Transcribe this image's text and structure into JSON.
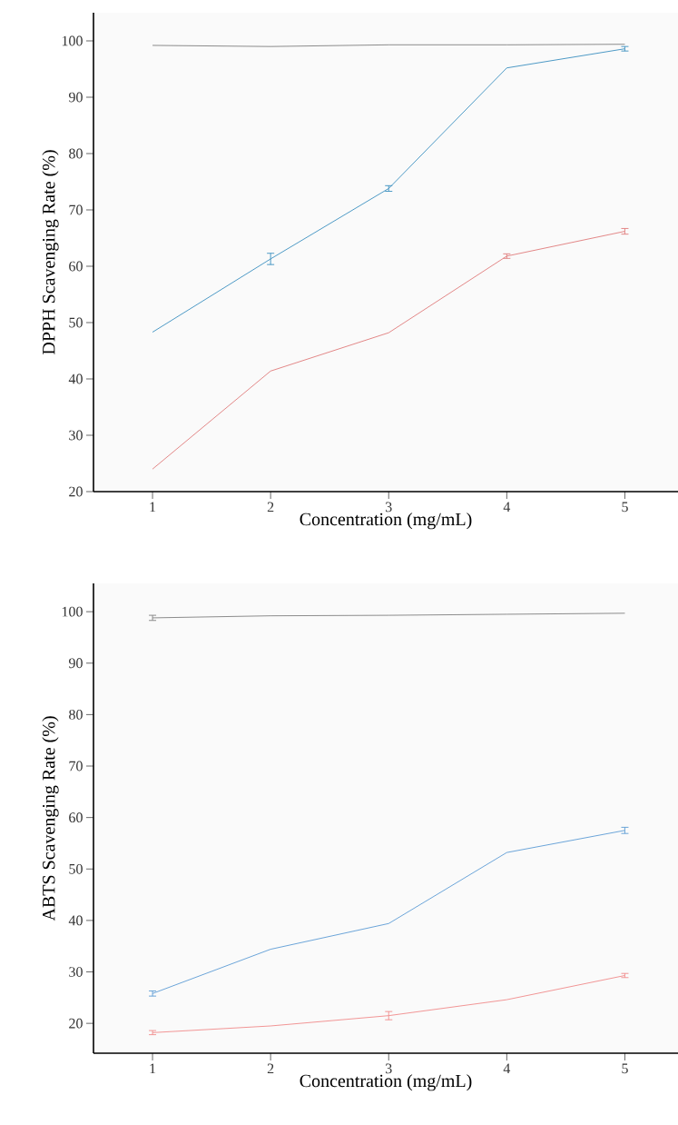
{
  "chart_data": [
    {
      "type": "line",
      "xlabel": "Concentration (mg/mL)",
      "ylabel": "DPPH Scavenging Rate (%)",
      "x": [
        1,
        2,
        3,
        4,
        5
      ],
      "xlim": [
        0.5,
        5.45
      ],
      "xticks": [
        1,
        2,
        3,
        4,
        5
      ],
      "ylim": [
        20,
        105
      ],
      "yticks": [
        20,
        30,
        40,
        50,
        60,
        70,
        80,
        90,
        100
      ],
      "series": [
        {
          "color": "#7f7f7f",
          "values": [
            99.2,
            99.0,
            99.3,
            99.3,
            99.4
          ]
        },
        {
          "color": "#3a8fbf",
          "values": [
            48.3,
            61.3,
            73.8,
            95.2,
            98.6
          ],
          "errors": [
            null,
            1.0,
            0.5,
            null,
            0.4
          ]
        },
        {
          "color": "#e07b7b",
          "values": [
            24.0,
            41.4,
            48.2,
            61.8,
            66.2
          ],
          "errors": [
            null,
            null,
            null,
            0.4,
            0.5
          ]
        }
      ]
    },
    {
      "type": "line",
      "xlabel": "Concentration (mg/mL)",
      "ylabel": "ABTS Scavenging Rate (%)",
      "x": [
        1,
        2,
        3,
        4,
        5
      ],
      "xlim": [
        0.5,
        5.45
      ],
      "xticks": [
        1,
        2,
        3,
        4,
        5
      ],
      "ylim": [
        14.2,
        105.5
      ],
      "yticks": [
        20,
        30,
        40,
        50,
        60,
        70,
        80,
        90,
        100
      ],
      "series": [
        {
          "color": "#7f7f7f",
          "values": [
            98.8,
            99.2,
            99.3,
            99.5,
            99.7
          ],
          "errors": [
            0.5,
            null,
            null,
            null,
            null
          ]
        },
        {
          "color": "#5b9bd5",
          "values": [
            25.8,
            34.4,
            39.4,
            53.2,
            57.5
          ],
          "errors": [
            0.5,
            null,
            null,
            null,
            0.6
          ]
        },
        {
          "color": "#f08a8a",
          "values": [
            18.2,
            19.5,
            21.5,
            24.6,
            29.3
          ],
          "errors": [
            0.4,
            null,
            0.8,
            null,
            0.4
          ]
        }
      ]
    }
  ]
}
